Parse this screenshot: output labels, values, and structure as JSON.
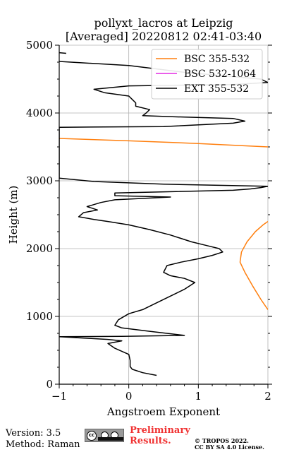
{
  "chart_data": {
    "type": "line",
    "title": [
      "pollyxt_lacros at Leipzig",
      "[Averaged] 20220812 02:41-03:40"
    ],
    "xlabel": "Angstroem Exponent",
    "ylabel": "Height (m)",
    "xlim": [
      -1,
      2
    ],
    "ylim": [
      0,
      5000
    ],
    "xticks": [
      -1,
      0,
      1,
      2
    ],
    "yticks": [
      0,
      1000,
      2000,
      3000,
      4000,
      5000
    ],
    "grid": true,
    "legend_position": "top-right",
    "series": [
      {
        "name": "BSC 355-532",
        "color": "#ff7f0e",
        "points": [
          [
            2.0,
            1100
          ],
          [
            1.9,
            1250
          ],
          [
            1.78,
            1450
          ],
          [
            1.67,
            1650
          ],
          [
            1.6,
            1800
          ],
          [
            1.62,
            1950
          ],
          [
            1.7,
            2100
          ],
          [
            1.82,
            2250
          ],
          [
            1.93,
            2350
          ],
          [
            2.0,
            2400
          ],
          null,
          [
            -1.0,
            3625
          ],
          [
            0,
            3590
          ],
          [
            1.0,
            3550
          ],
          [
            2.0,
            3500
          ]
        ]
      },
      {
        "name": "BSC 532-1064",
        "color": "#e32ae3",
        "points": []
      },
      {
        "name": "EXT 355-532",
        "color": "#000000",
        "points": [
          [
            0.4,
            130
          ],
          [
            0.2,
            170
          ],
          [
            0.05,
            220
          ],
          [
            0.02,
            260
          ],
          [
            0.02,
            350
          ],
          [
            0.0,
            440
          ],
          [
            -0.2,
            530
          ],
          [
            -0.3,
            600
          ],
          [
            -0.1,
            640
          ],
          [
            -0.3,
            660
          ],
          [
            -1.0,
            700
          ],
          [
            -0.1,
            705
          ],
          [
            0.8,
            720
          ],
          [
            0.3,
            780
          ],
          [
            -0.1,
            830
          ],
          [
            -0.2,
            870
          ],
          [
            -0.15,
            950
          ],
          [
            0.0,
            1040
          ],
          [
            0.2,
            1100
          ],
          [
            0.4,
            1200
          ],
          [
            0.6,
            1300
          ],
          [
            0.8,
            1400
          ],
          [
            0.95,
            1500
          ],
          [
            0.8,
            1560
          ],
          [
            0.6,
            1600
          ],
          [
            0.5,
            1650
          ],
          [
            0.55,
            1750
          ],
          [
            0.75,
            1800
          ],
          [
            1.0,
            1850
          ],
          [
            1.2,
            1900
          ],
          [
            1.35,
            1950
          ],
          [
            1.3,
            2000
          ],
          [
            1.1,
            2050
          ],
          [
            0.9,
            2100
          ],
          [
            0.6,
            2200
          ],
          [
            0.3,
            2280
          ],
          [
            0.0,
            2350
          ],
          [
            -0.3,
            2400
          ],
          [
            -0.5,
            2430
          ],
          [
            -0.72,
            2470
          ],
          [
            -0.65,
            2530
          ],
          [
            -0.45,
            2570
          ],
          [
            -0.6,
            2620
          ],
          [
            -0.4,
            2680
          ],
          [
            -0.2,
            2720
          ],
          [
            0.6,
            2760
          ],
          [
            -0.2,
            2780
          ],
          [
            -0.2,
            2820
          ],
          [
            1.5,
            2860
          ],
          [
            1.75,
            2880
          ],
          [
            1.9,
            2900
          ],
          [
            2.0,
            2920
          ],
          [
            0.5,
            2950
          ],
          [
            -0.5,
            2990
          ],
          [
            -1.0,
            3040
          ],
          [
            -1.0,
            3300
          ],
          [
            -1.0,
            3600
          ],
          [
            -1.0,
            3790
          ],
          [
            0.5,
            3800
          ],
          [
            1.5,
            3850
          ],
          [
            1.67,
            3880
          ],
          [
            1.5,
            3920
          ],
          [
            0.8,
            3940
          ],
          [
            0.2,
            3960
          ],
          [
            0.25,
            4000
          ],
          [
            0.3,
            4050
          ],
          [
            0.1,
            4100
          ],
          [
            0.1,
            4150
          ],
          [
            0.05,
            4200
          ],
          [
            0.0,
            4250
          ],
          [
            -0.35,
            4300
          ],
          [
            -0.5,
            4350
          ],
          [
            0.0,
            4400
          ],
          [
            1.5,
            4420
          ],
          [
            2.0,
            4450
          ],
          [
            1.9,
            4500
          ],
          [
            0.8,
            4600
          ],
          [
            0.0,
            4700
          ],
          [
            -1.0,
            4760
          ],
          null,
          [
            -0.9,
            4880
          ],
          [
            -1.0,
            4890
          ]
        ]
      }
    ]
  },
  "footer": {
    "version": "Version: 3.5",
    "method": "Method: Raman",
    "preliminary": [
      "Preliminary",
      "Results."
    ],
    "copyright": [
      "© TROPOS 2022.",
      "CC BY SA 4.0 License."
    ],
    "license_badge_icon": "cc-by-sa-icon"
  }
}
